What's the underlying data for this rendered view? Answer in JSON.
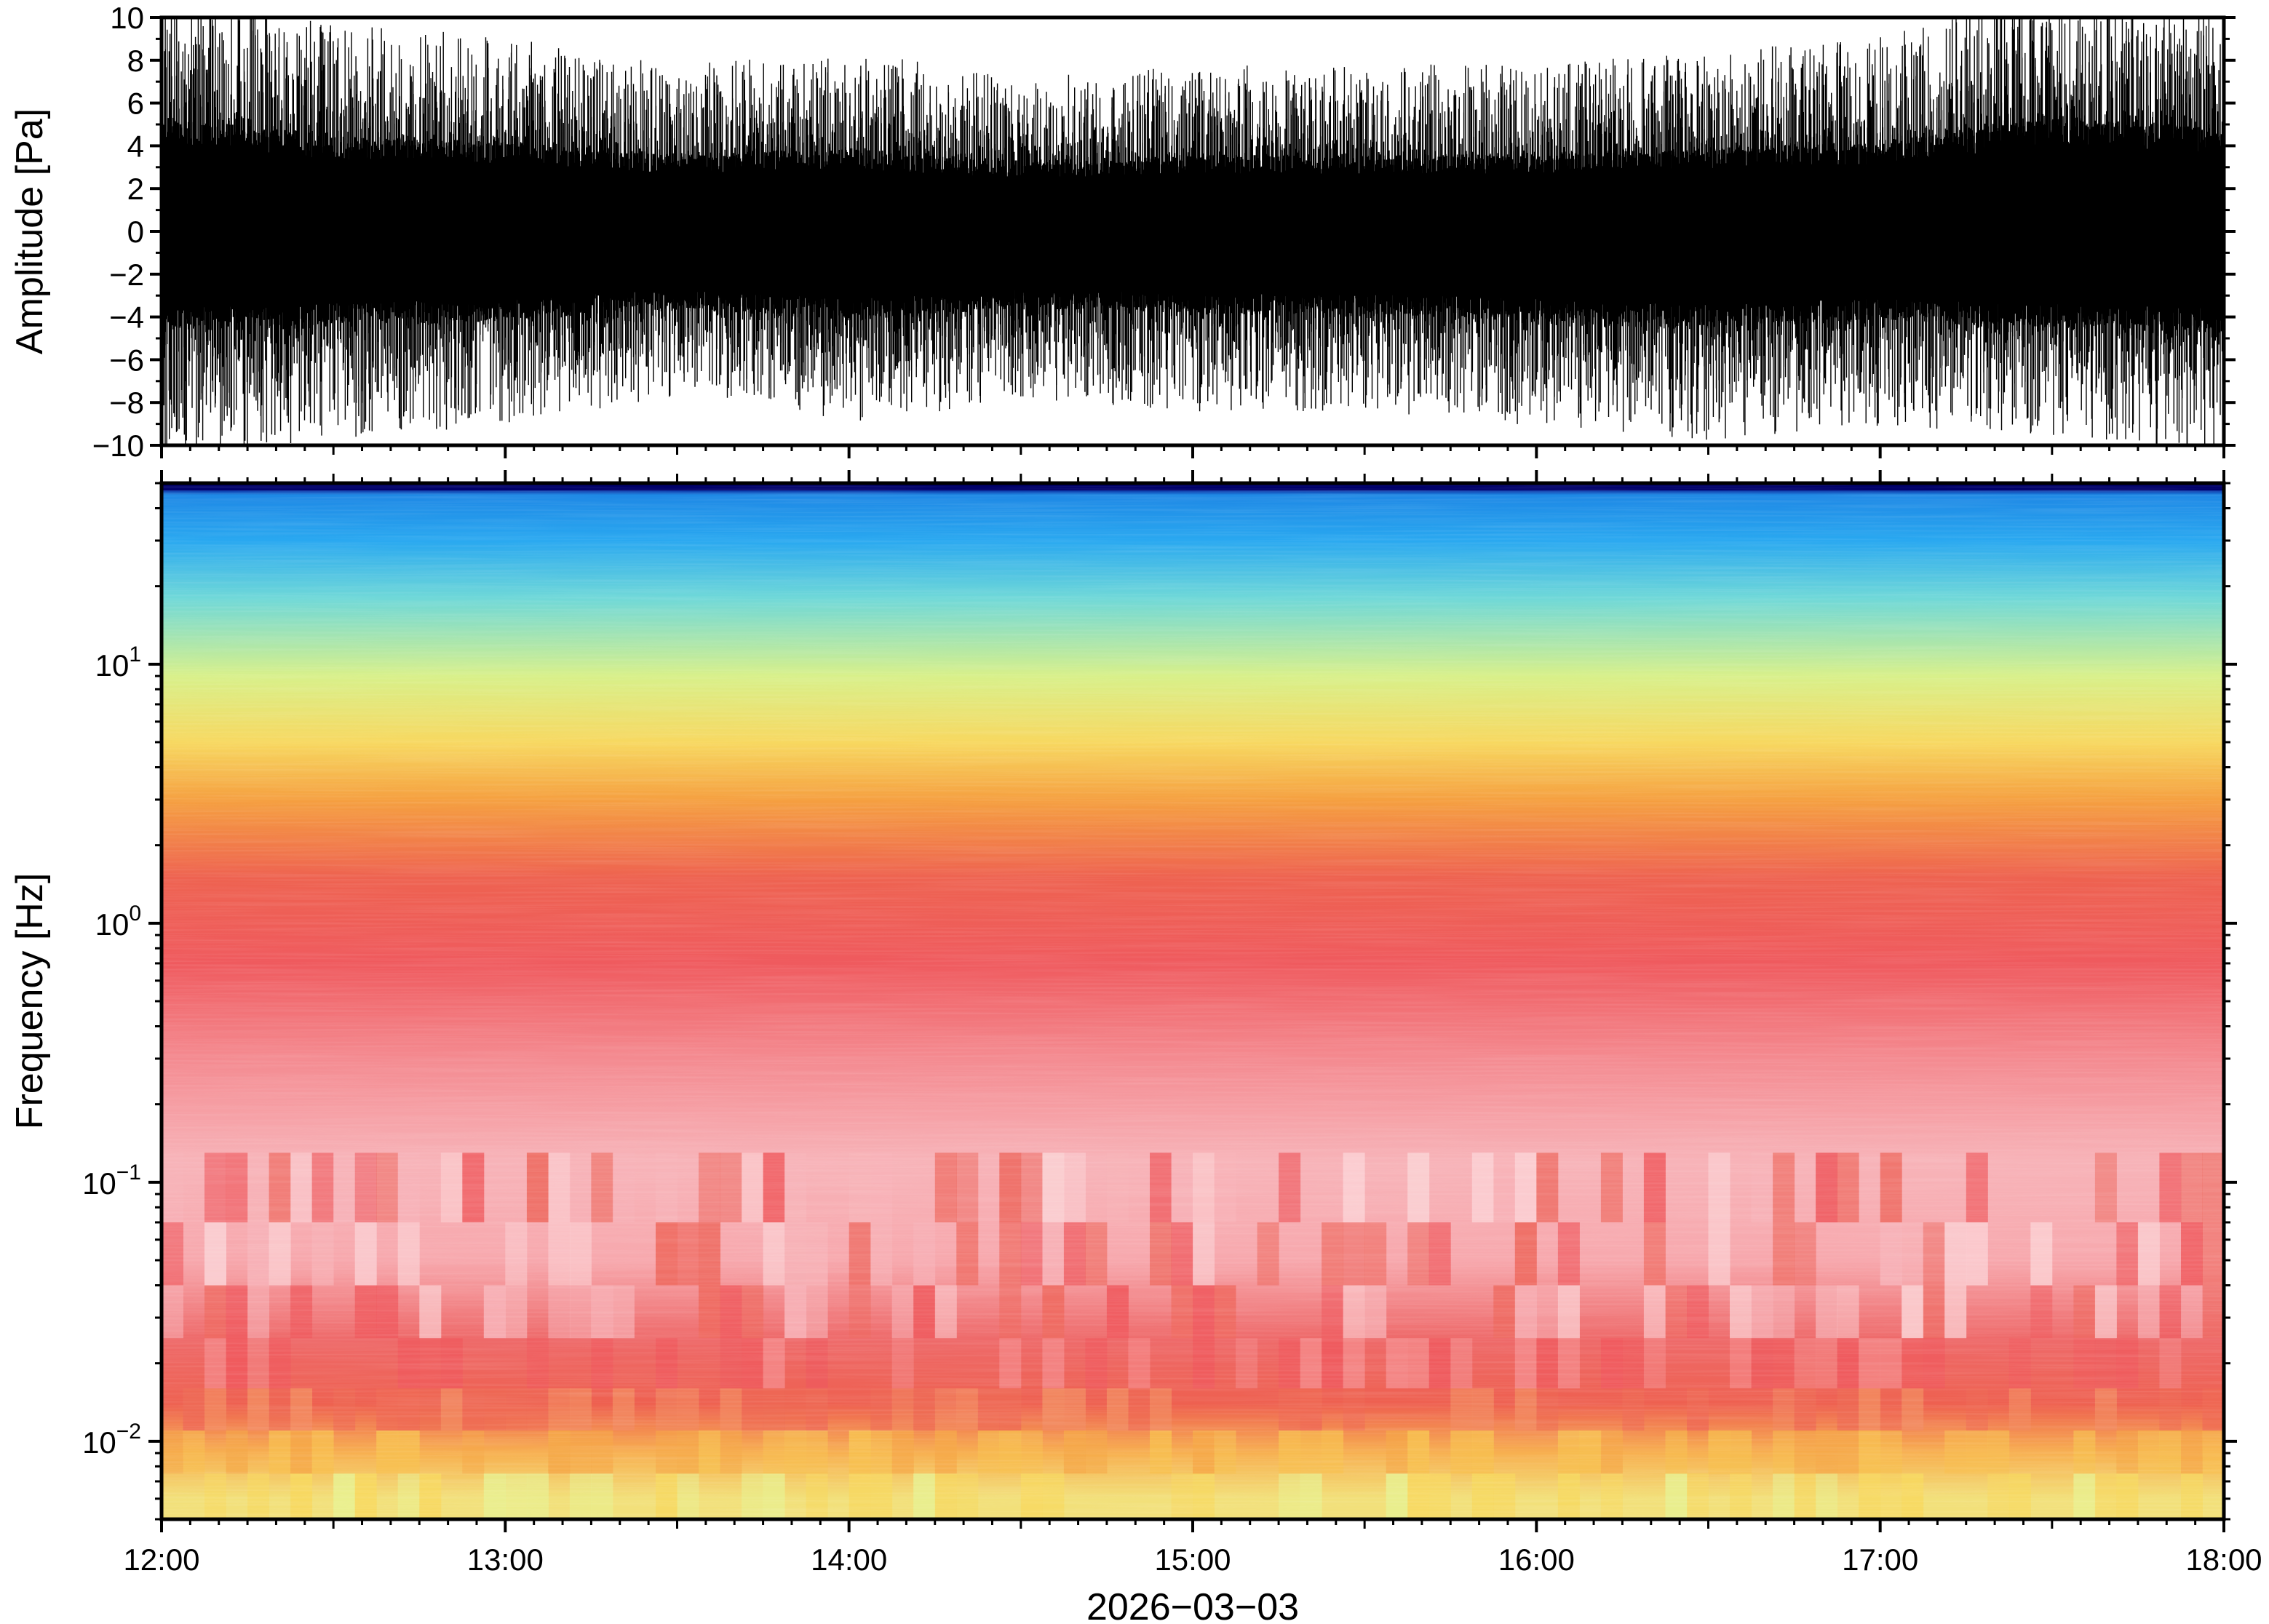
{
  "chart_data": [
    {
      "type": "line",
      "panel": "waveform",
      "ylabel": "Amplitude [Pa]",
      "ylim": [
        -10,
        10
      ],
      "yticks": [
        -10,
        -8,
        -6,
        -4,
        -2,
        0,
        2,
        4,
        6,
        8,
        10
      ],
      "ytick_labels": [
        "−10",
        "−8",
        "−6",
        "−4",
        "−2",
        "0",
        "2",
        "4",
        "6",
        "8",
        "10"
      ],
      "series": [
        {
          "trace_color": "#000000",
          "envelope_hours": [
            12.0,
            12.5,
            13.0,
            13.5,
            14.0,
            14.5,
            15.0,
            15.5,
            16.0,
            16.5,
            17.0,
            17.5,
            18.0
          ],
          "envelope_max_pa": [
            9,
            7.5,
            7,
            6,
            6.5,
            5.5,
            6,
            6,
            6,
            6.5,
            7,
            9,
            8
          ],
          "envelope_min_pa": [
            -8,
            -7.5,
            -7,
            -6,
            -7,
            -6,
            -6.5,
            -6.5,
            -7,
            -7.5,
            -7,
            -7.5,
            -8
          ]
        }
      ]
    },
    {
      "type": "heatmap",
      "panel": "spectrogram",
      "ylabel": "Frequency [Hz]",
      "yscale": "log",
      "ylim": [
        0.005,
        50
      ],
      "yticks": [
        0.01,
        0.1,
        1,
        10
      ],
      "ytick_labels": [
        {
          "base": "10",
          "exp": "−2"
        },
        {
          "base": "10",
          "exp": "−1"
        },
        {
          "base": "10",
          "exp": "0"
        },
        {
          "base": "10",
          "exp": "1"
        }
      ],
      "xlabel": "2026−03−03",
      "xlim_hours": [
        12,
        18
      ],
      "xticks_hours": [
        12,
        13,
        14,
        15,
        16,
        17,
        18
      ],
      "xtick_labels": [
        "12:00",
        "13:00",
        "14:00",
        "15:00",
        "16:00",
        "17:00",
        "18:00"
      ],
      "colormap": [
        "#00007f",
        "#1c9bf0",
        "#6fe0c8",
        "#d8f08a",
        "#f7c34a",
        "#f38a3e",
        "#ee5a58",
        "#f7b9bd",
        "#fde3e4"
      ],
      "frequency_color_profile": [
        {
          "freq_hz": 48,
          "color": "#00007f"
        },
        {
          "freq_hz": 45,
          "color": "#1e88e5"
        },
        {
          "freq_hz": 30,
          "color": "#29a8f0"
        },
        {
          "freq_hz": 18,
          "color": "#6fd8d8"
        },
        {
          "freq_hz": 9,
          "color": "#d8f08a"
        },
        {
          "freq_hz": 5,
          "color": "#f7d860"
        },
        {
          "freq_hz": 3,
          "color": "#f5a040"
        },
        {
          "freq_hz": 1.5,
          "color": "#ee6250"
        },
        {
          "freq_hz": 0.7,
          "color": "#ef5a5e"
        },
        {
          "freq_hz": 0.3,
          "color": "#f48a90"
        },
        {
          "freq_hz": 0.12,
          "color": "#f7b3b8"
        },
        {
          "freq_hz": 0.05,
          "color": "#f7a8ad"
        },
        {
          "freq_hz": 0.025,
          "color": "#ee6a6a"
        },
        {
          "freq_hz": 0.014,
          "color": "#ee6050"
        },
        {
          "freq_hz": 0.009,
          "color": "#f7b050"
        },
        {
          "freq_hz": 0.006,
          "color": "#f2e07a"
        }
      ]
    }
  ]
}
